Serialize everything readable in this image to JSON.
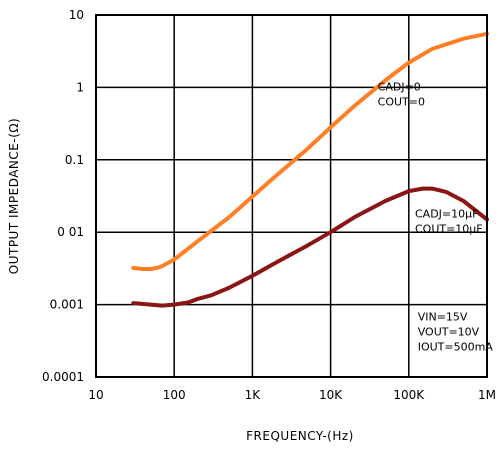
{
  "chart_data": {
    "type": "line",
    "title": "",
    "xlabel": "FREQUENCY-(Hz)",
    "ylabel": "OUTPUT IMPEDANCE-(Ω)",
    "x_scale": "log",
    "y_scale": "log",
    "xlim": [
      10,
      1000000
    ],
    "ylim": [
      0.0001,
      10
    ],
    "grid": true,
    "x_ticks": [
      {
        "value": 10,
        "label": "10"
      },
      {
        "value": 100,
        "label": "100"
      },
      {
        "value": 1000,
        "label": "1K"
      },
      {
        "value": 10000,
        "label": "10K"
      },
      {
        "value": 100000,
        "label": "100K"
      },
      {
        "value": 1000000,
        "label": "1M"
      }
    ],
    "y_ticks": [
      {
        "value": 10,
        "label": "10"
      },
      {
        "value": 1,
        "label": "1"
      },
      {
        "value": 0.1,
        "label": "0.1"
      },
      {
        "value": 0.01,
        "label": "0 01"
      },
      {
        "value": 0.001,
        "label": "0.001"
      },
      {
        "value": 0.0001,
        "label": "0.0001"
      }
    ],
    "series": [
      {
        "color": "#ff7f27",
        "x": [
          30,
          40,
          50,
          60,
          70,
          100,
          200,
          500,
          1000,
          2000,
          5000,
          10000,
          20000,
          50000,
          100000,
          200000,
          500000,
          1000000
        ],
        "y": [
          0.0032,
          0.0031,
          0.0031,
          0.0032,
          0.0034,
          0.0042,
          0.0075,
          0.016,
          0.031,
          0.06,
          0.14,
          0.28,
          0.55,
          1.25,
          2.2,
          3.4,
          4.7,
          5.5
        ]
      },
      {
        "color": "#8b1414",
        "x": [
          30,
          50,
          70,
          100,
          150,
          200,
          300,
          500,
          1000,
          2000,
          5000,
          10000,
          20000,
          50000,
          100000,
          150000,
          200000,
          300000,
          500000,
          1000000
        ],
        "y": [
          0.00105,
          0.001,
          0.00097,
          0.001,
          0.00107,
          0.0012,
          0.00135,
          0.0017,
          0.0025,
          0.0038,
          0.0065,
          0.01,
          0.016,
          0.027,
          0.037,
          0.04,
          0.04,
          0.036,
          0.027,
          0.015
        ]
      }
    ],
    "annotations": [
      {
        "lines": [
          "CADJ=0",
          "COUT=0"
        ],
        "x": 40000,
        "y": 0.9
      },
      {
        "lines": [
          "CADJ=10μF",
          "COUT=10μF"
        ],
        "x": 120000,
        "y": 0.016
      },
      {
        "lines": [
          "VIN=15V",
          "VOUT=10V",
          "IOUT=500mA"
        ],
        "x": 130000,
        "y": 0.0006
      }
    ]
  }
}
